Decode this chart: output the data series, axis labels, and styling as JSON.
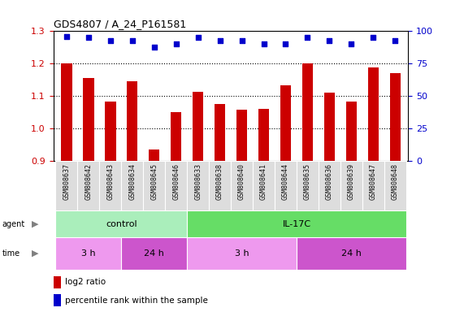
{
  "title": "GDS4807 / A_24_P161581",
  "samples": [
    "GSM808637",
    "GSM808642",
    "GSM808643",
    "GSM808634",
    "GSM808645",
    "GSM808646",
    "GSM808633",
    "GSM808638",
    "GSM808640",
    "GSM808641",
    "GSM808644",
    "GSM808635",
    "GSM808636",
    "GSM808639",
    "GSM808647",
    "GSM808648"
  ],
  "log2_ratio": [
    1.2,
    1.155,
    1.083,
    1.145,
    0.935,
    1.05,
    1.112,
    1.075,
    1.058,
    1.06,
    1.133,
    1.2,
    1.11,
    1.083,
    1.187,
    1.17
  ],
  "percentile": [
    96,
    95,
    93,
    93,
    88,
    90,
    95,
    93,
    93,
    90,
    90,
    95,
    93,
    90,
    95,
    93
  ],
  "bar_color": "#cc0000",
  "dot_color": "#0000cc",
  "ylim_left": [
    0.9,
    1.3
  ],
  "ylim_right": [
    0,
    100
  ],
  "yticks_left": [
    0.9,
    1.0,
    1.1,
    1.2,
    1.3
  ],
  "yticks_right": [
    0,
    25,
    50,
    75,
    100
  ],
  "agent_groups": [
    {
      "label": "control",
      "start": 0,
      "end": 6,
      "color": "#aaeebb"
    },
    {
      "label": "IL-17C",
      "start": 6,
      "end": 16,
      "color": "#66dd66"
    }
  ],
  "time_groups": [
    {
      "label": "3 h",
      "start": 0,
      "end": 3,
      "color": "#ee99ee"
    },
    {
      "label": "24 h",
      "start": 3,
      "end": 6,
      "color": "#cc55cc"
    },
    {
      "label": "3 h",
      "start": 6,
      "end": 11,
      "color": "#ee99ee"
    },
    {
      "label": "24 h",
      "start": 11,
      "end": 16,
      "color": "#cc55cc"
    }
  ],
  "legend_items": [
    {
      "color": "#cc0000",
      "label": "log2 ratio"
    },
    {
      "color": "#0000cc",
      "label": "percentile rank within the sample"
    }
  ],
  "background_color": "#ffffff",
  "sample_bg_color": "#dddddd",
  "tick_label_color": "#111111",
  "grid_color": "#000000",
  "left_label_color": "#cc0000",
  "right_label_color": "#0000cc"
}
